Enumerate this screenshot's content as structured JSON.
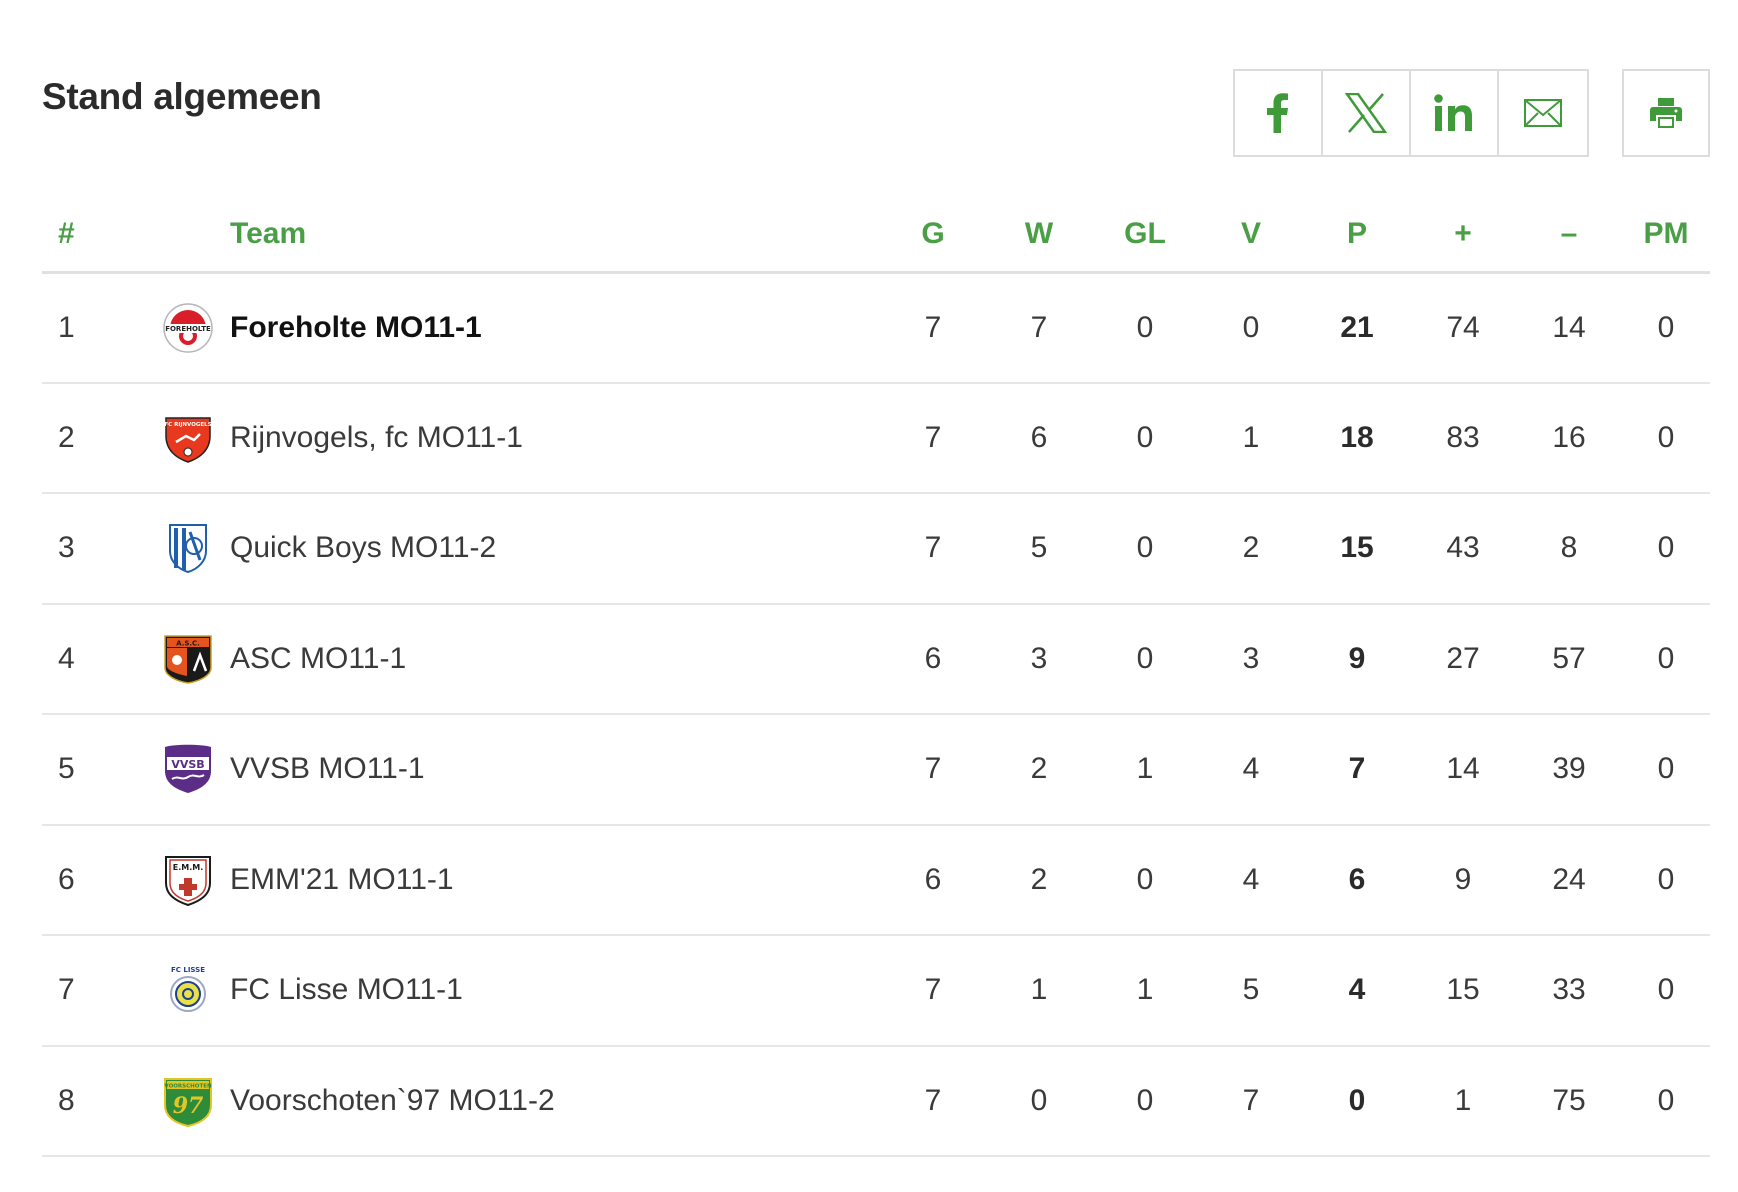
{
  "page": {
    "title": "Stand algemeen"
  },
  "share": {
    "items": [
      {
        "name": "facebook",
        "icon": "facebook-icon"
      },
      {
        "name": "x",
        "icon": "x-icon"
      },
      {
        "name": "linkedin",
        "icon": "linkedin-icon"
      },
      {
        "name": "email",
        "icon": "mail-icon"
      }
    ],
    "print_icon": "printer-icon",
    "accent_color": "#3f9a3a"
  },
  "table": {
    "headers": {
      "rank": "#",
      "team": "Team",
      "played": "G",
      "won": "W",
      "draw": "GL",
      "lost": "V",
      "points": "P",
      "goals_for": "+",
      "goals_against": "–",
      "penalty": "PM"
    },
    "rows": [
      {
        "rank": "1",
        "team": "Foreholte MO11-1",
        "logo": "foreholte-logo",
        "played": "7",
        "won": "7",
        "draw": "0",
        "lost": "0",
        "points": "21",
        "goals_for": "74",
        "goals_against": "14",
        "penalty": "0"
      },
      {
        "rank": "2",
        "team": "Rijnvogels, fc MO11-1",
        "logo": "rijnvogels-logo",
        "played": "7",
        "won": "6",
        "draw": "0",
        "lost": "1",
        "points": "18",
        "goals_for": "83",
        "goals_against": "16",
        "penalty": "0"
      },
      {
        "rank": "3",
        "team": "Quick Boys MO11-2",
        "logo": "quick-boys-logo",
        "played": "7",
        "won": "5",
        "draw": "0",
        "lost": "2",
        "points": "15",
        "goals_for": "43",
        "goals_against": "8",
        "penalty": "0"
      },
      {
        "rank": "4",
        "team": "ASC MO11-1",
        "logo": "asc-logo",
        "played": "6",
        "won": "3",
        "draw": "0",
        "lost": "3",
        "points": "9",
        "goals_for": "27",
        "goals_against": "57",
        "penalty": "0"
      },
      {
        "rank": "5",
        "team": "VVSB MO11-1",
        "logo": "vvsb-logo",
        "played": "7",
        "won": "2",
        "draw": "1",
        "lost": "4",
        "points": "7",
        "goals_for": "14",
        "goals_against": "39",
        "penalty": "0"
      },
      {
        "rank": "6",
        "team": "EMM'21 MO11-1",
        "logo": "emm21-logo",
        "played": "6",
        "won": "2",
        "draw": "0",
        "lost": "4",
        "points": "6",
        "goals_for": "9",
        "goals_against": "24",
        "penalty": "0"
      },
      {
        "rank": "7",
        "team": "FC Lisse MO11-1",
        "logo": "fc-lisse-logo",
        "played": "7",
        "won": "1",
        "draw": "1",
        "lost": "5",
        "points": "4",
        "goals_for": "15",
        "goals_against": "33",
        "penalty": "0"
      },
      {
        "rank": "8",
        "team": "Voorschoten`97 MO11-2",
        "logo": "voorschoten97-logo",
        "played": "7",
        "won": "0",
        "draw": "0",
        "lost": "7",
        "points": "0",
        "goals_for": "1",
        "goals_against": "75",
        "penalty": "0"
      }
    ]
  },
  "logos": {
    "foreholte_text": "FOREHOLTE",
    "rijnvogels_text": "FC RIJNVOGELS",
    "asc_text": "A.S.C.",
    "vvsb_text": "VVSB",
    "emm_text": "E.M.M.",
    "lisse_text": "FC LISSE",
    "voorschoten_text": "VOORSCHOTEN",
    "voorschoten_number": "97"
  }
}
